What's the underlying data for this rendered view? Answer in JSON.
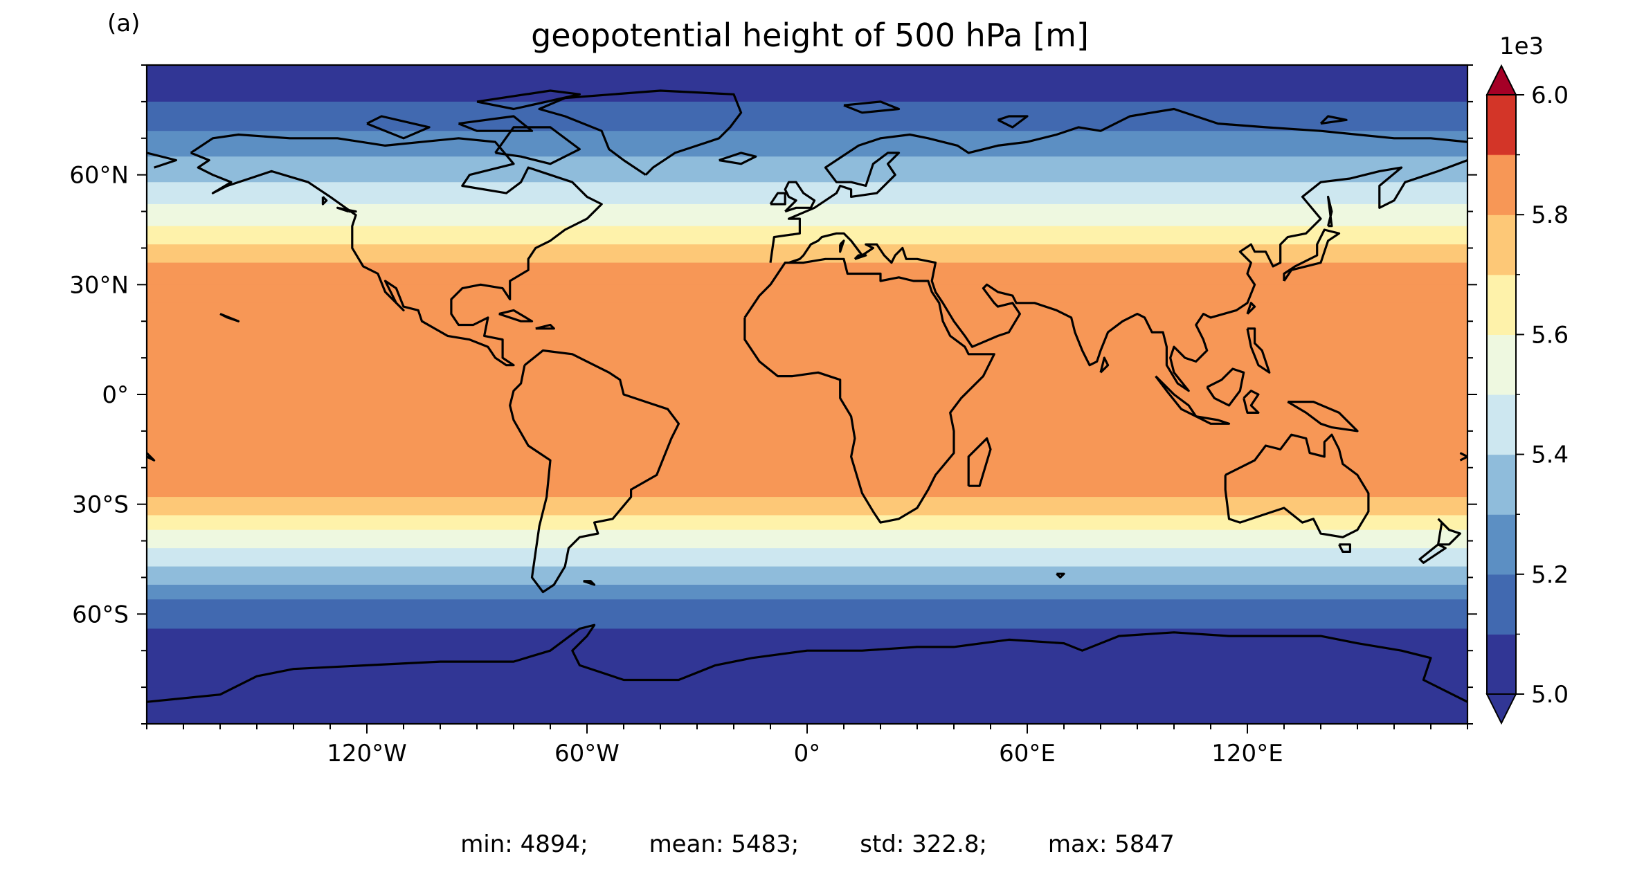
{
  "panel_label": "(a)",
  "title": "geopotential height of 500 hPa [m]",
  "stats": {
    "min": "min: 4894;",
    "mean": "mean: 5483;",
    "std": "std: 322.8;",
    "max": "max: 5847"
  },
  "chart_data": {
    "type": "heatmap",
    "title": "geopotential height of 500 hPa [m]",
    "projection": "PlateCarree",
    "x_ticks": [
      "120°W",
      "60°W",
      "0°",
      "60°E",
      "120°E"
    ],
    "y_ticks": [
      "60°N",
      "30°N",
      "0°",
      "30°S",
      "60°S"
    ],
    "x_tick_values": [
      -120,
      -60,
      0,
      60,
      120
    ],
    "y_tick_values": [
      60,
      30,
      0,
      -30,
      -60
    ],
    "xlim": [
      -180,
      180
    ],
    "ylim": [
      -90,
      90
    ],
    "colorbar": {
      "multiplier": "1e3",
      "tick_labels": [
        "6.0",
        "5.8",
        "5.6",
        "5.4",
        "5.2",
        "5.0"
      ],
      "tick_values": [
        6.0,
        5.8,
        5.6,
        5.4,
        5.2,
        5.0
      ],
      "levels": [
        5.0,
        5.1,
        5.2,
        5.3,
        5.4,
        5.5,
        5.6,
        5.7,
        5.8,
        5.9,
        6.0
      ],
      "extend": "both",
      "colors": [
        "#313695",
        "#4169b0",
        "#5c8fc3",
        "#8fbcdb",
        "#cde7f0",
        "#eef8e0",
        "#fef2aa",
        "#fdc877",
        "#f79756",
        "#ef6540",
        "#d33528"
      ],
      "under_color": "#313695",
      "over_color": "#a50026"
    },
    "zonal_profile": {
      "latitude": [
        90,
        80,
        72,
        65,
        58,
        52,
        46,
        41,
        36,
        30,
        25,
        0,
        -22,
        -28,
        -33,
        -37,
        -42,
        -47,
        -52,
        -56,
        -60,
        -64,
        -68,
        -73,
        -80,
        -90
      ],
      "value_m": [
        5050,
        5050,
        5150,
        5250,
        5350,
        5450,
        5550,
        5650,
        5750,
        5850,
        5850,
        5850,
        5850,
        5850,
        5750,
        5650,
        5550,
        5450,
        5350,
        5250,
        5150,
        5150,
        5050,
        5050,
        5050,
        5050
      ]
    },
    "coastlines": true
  }
}
